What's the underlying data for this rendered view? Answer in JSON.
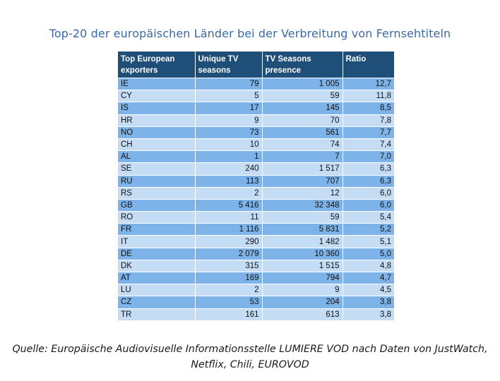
{
  "title": "Top-20 der europäischen Länder bei der Verbreitung  von Fernsehtiteln",
  "chart_data": {
    "type": "table",
    "title": "Top-20 der europäischen Länder bei der Verbreitung  von Fernsehtiteln",
    "columns": [
      "Top European exporters",
      "Unique TV seasons",
      "TV Seasons presence",
      "Ratio"
    ],
    "rows": [
      [
        "IE",
        "79",
        "1 005",
        "12,7"
      ],
      [
        "CY",
        "5",
        "59",
        "11,8"
      ],
      [
        "IS",
        "17",
        "145",
        "8,5"
      ],
      [
        "HR",
        "9",
        "70",
        "7,8"
      ],
      [
        "NO",
        "73",
        "561",
        "7,7"
      ],
      [
        "CH",
        "10",
        "74",
        "7,4"
      ],
      [
        "AL",
        "1",
        "7",
        "7,0"
      ],
      [
        "SE",
        "240",
        "1 517",
        "6,3"
      ],
      [
        "RU",
        "113",
        "707",
        "6,3"
      ],
      [
        "RS",
        "2",
        "12",
        "6,0"
      ],
      [
        "GB",
        "5 416",
        "32 348",
        "6,0"
      ],
      [
        "RO",
        "11",
        "59",
        "5,4"
      ],
      [
        "FR",
        "1 116",
        "5 831",
        "5,2"
      ],
      [
        "IT",
        "290",
        "1 482",
        "5,1"
      ],
      [
        "DE",
        "2 079",
        "10 360",
        "5,0"
      ],
      [
        "DK",
        "315",
        "1 515",
        "4,8"
      ],
      [
        "AT",
        "169",
        "794",
        "4,7"
      ],
      [
        "LU",
        "2",
        "9",
        "4,5"
      ],
      [
        "CZ",
        "53",
        "204",
        "3,8"
      ],
      [
        "TR",
        "161",
        "613",
        "3,8"
      ]
    ]
  },
  "source": {
    "line1": "Quelle: Europäische Audiovisuelle Informationsstelle LUMIERE VOD nach Daten von JustWatch,",
    "line2": "Netflix, Chili, EUROVOD"
  },
  "colors": {
    "header": "#1f4e79",
    "row_dark": "#7db3e8",
    "row_light": "#c5dcf5",
    "title": "#3a6aa6"
  }
}
